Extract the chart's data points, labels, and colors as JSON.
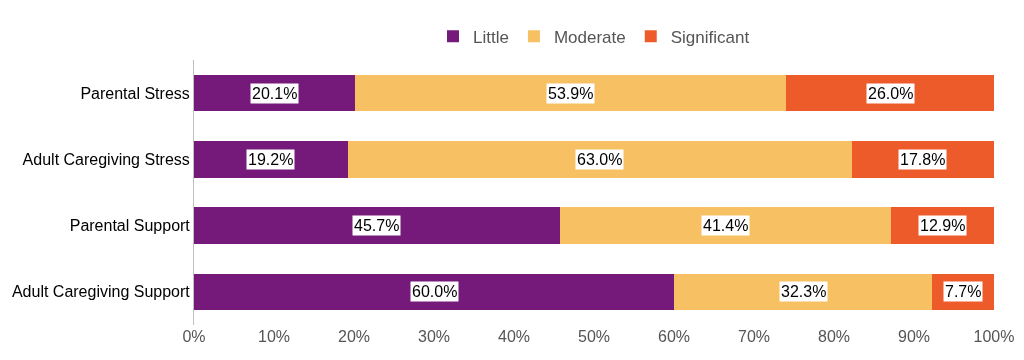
{
  "chart_data": {
    "type": "bar",
    "orientation": "horizontal",
    "stacked": true,
    "legend": "top",
    "grid": false,
    "categories": [
      "Parental Stress",
      "Adult Caregiving Stress",
      "Parental Support",
      "Adult Caregiving Support"
    ],
    "series": [
      {
        "name": "Little",
        "color": "#751a7b",
        "values": [
          20.1,
          19.2,
          45.7,
          60.0
        ],
        "value_labels": [
          "20.1%",
          "19.2%",
          "45.7%",
          "60.0%"
        ]
      },
      {
        "name": "Moderate",
        "color": "#f6c063",
        "values": [
          53.9,
          63.0,
          41.4,
          32.3
        ],
        "value_labels": [
          "53.9%",
          "63.0%",
          "41.4%",
          "32.3%"
        ]
      },
      {
        "name": "Significant",
        "color": "#ee5b2b",
        "values": [
          26.0,
          17.8,
          12.9,
          7.7
        ],
        "value_labels": [
          "26.0%",
          "17.8%",
          "12.9%",
          "7.7%"
        ]
      }
    ],
    "xlim": [
      0,
      100
    ],
    "xticks": [
      {
        "value": 0,
        "label": "0%"
      },
      {
        "value": 10,
        "label": "10%"
      },
      {
        "value": 20,
        "label": "20%"
      },
      {
        "value": 30,
        "label": "30%"
      },
      {
        "value": 40,
        "label": "40%"
      },
      {
        "value": 50,
        "label": "50%"
      },
      {
        "value": 60,
        "label": "60%"
      },
      {
        "value": 70,
        "label": "70%"
      },
      {
        "value": 80,
        "label": "80%"
      },
      {
        "value": 90,
        "label": "90%"
      },
      {
        "value": 100,
        "label": "100%"
      }
    ]
  }
}
